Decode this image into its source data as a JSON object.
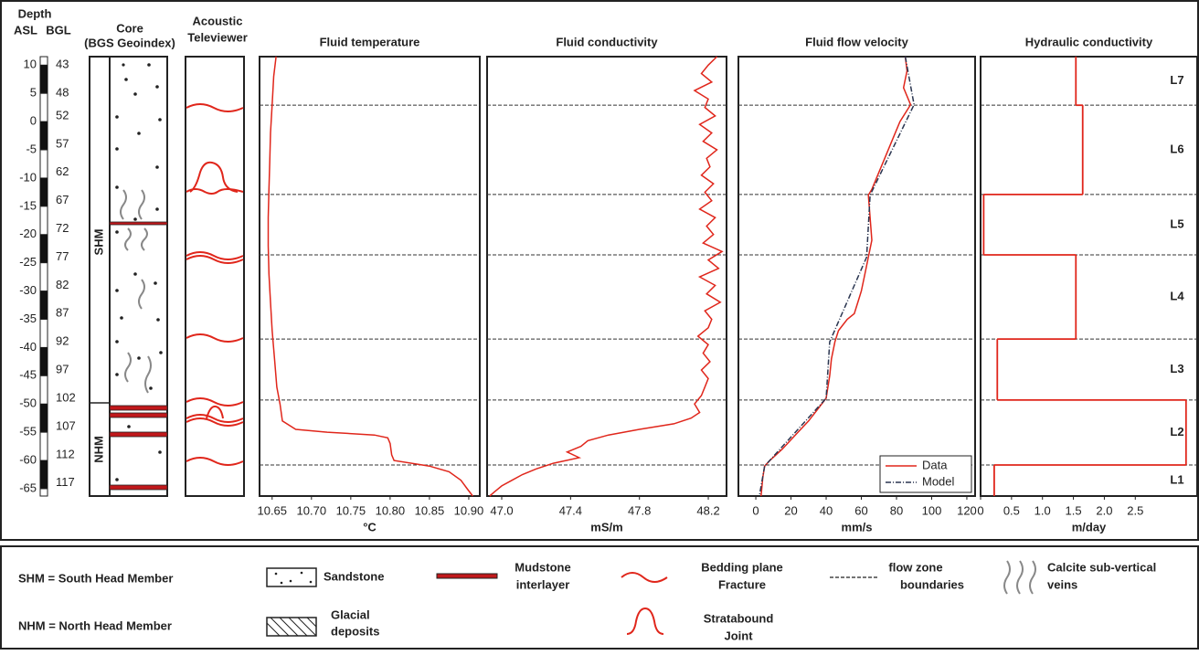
{
  "header": {
    "depth": "Depth",
    "asl": "ASL",
    "bgl": "BGL",
    "core": "Core",
    "core_source": "(BGS Geoindex)",
    "televiewer": [
      "Acoustic",
      "Televiewer"
    ],
    "shm": "SHM",
    "nhm": "NHM"
  },
  "depth_axis": {
    "ylim": [
      41.5,
      119.3
    ],
    "asl_lim": [
      11.5,
      -66.3
    ],
    "asl_ticks": [
      10,
      5,
      0,
      -5,
      -10,
      -15,
      -20,
      -25,
      -30,
      -35,
      -40,
      -45,
      -50,
      -55,
      -60,
      -65
    ],
    "bgl_ticks": [
      43,
      48,
      52,
      57,
      62,
      67,
      72,
      77,
      82,
      87,
      92,
      97,
      102,
      107,
      112,
      117
    ]
  },
  "zone_boundaries": [
    50.1,
    65.9,
    76.6,
    91.5,
    102.3,
    113.8
  ],
  "chart_data": [
    {
      "type": "line",
      "title": "Fluid temperature",
      "xlabel": "°C",
      "xlim": [
        10.634,
        10.914
      ],
      "xticks": [
        10.65,
        {
          "value": 10.7,
          "label": "10.70"
        },
        10.75,
        {
          "value": 10.8,
          "label": "10.80"
        },
        10.85,
        {
          "value": 10.9,
          "label": "10.90"
        }
      ],
      "series": [
        {
          "color": "#e0261b",
          "depth": [
            41.5,
            45,
            50,
            55,
            60,
            65,
            70,
            75,
            80,
            85,
            90,
            95,
            100,
            103,
            106,
            107.5,
            108,
            108.5,
            109,
            110,
            112,
            113,
            114,
            115,
            116.5,
            118,
            119.3
          ],
          "values": [
            10.655,
            10.652,
            10.65,
            10.648,
            10.647,
            10.646,
            10.645,
            10.645,
            10.646,
            10.648,
            10.65,
            10.653,
            10.656,
            10.66,
            10.663,
            10.68,
            10.72,
            10.78,
            10.797,
            10.8,
            10.802,
            10.805,
            10.85,
            10.875,
            10.89,
            10.898,
            10.905
          ]
        }
      ]
    },
    {
      "type": "line",
      "title": "Fluid conductivity",
      "xlabel": "mS/m",
      "xlim": [
        46.915,
        48.306
      ],
      "xticks": [
        {
          "value": 47,
          "label": "47.0"
        },
        47.4,
        47.8,
        48.2
      ],
      "series": [
        {
          "color": "#e0261b",
          "depth": [
            41.5,
            43,
            44.5,
            46,
            47.5,
            49,
            50.5,
            52,
            53.5,
            55,
            56.5,
            58,
            59.5,
            61,
            62.5,
            64,
            65.5,
            67,
            68.5,
            70,
            71.5,
            73,
            74.5,
            76,
            77.5,
            79,
            80.5,
            82,
            83.5,
            85,
            86.5,
            88,
            89.5,
            91,
            92.5,
            94,
            95.5,
            97,
            98.5,
            100,
            101.5,
            103,
            104.5,
            105.5,
            106.5,
            107.5,
            108.5,
            109.5,
            110.5,
            111.5,
            112.5,
            113.5,
            114.5,
            115.5,
            116.5,
            117.5,
            118.5,
            119.3
          ],
          "values": [
            48.25,
            48.2,
            48.16,
            48.22,
            48.12,
            48.2,
            48.18,
            48.24,
            48.15,
            48.22,
            48.17,
            48.25,
            48.19,
            48.21,
            48.16,
            48.23,
            48.18,
            48.22,
            48.15,
            48.24,
            48.19,
            48.23,
            48.17,
            48.28,
            48.2,
            48.26,
            48.15,
            48.24,
            48.19,
            48.27,
            48.18,
            48.22,
            48.2,
            48.14,
            48.2,
            48.17,
            48.21,
            48.16,
            48.2,
            48.18,
            48.16,
            48.12,
            48.15,
            48.1,
            48.0,
            47.8,
            47.62,
            47.5,
            47.46,
            47.38,
            47.45,
            47.3,
            47.2,
            47.12,
            47.06,
            47.0,
            46.96,
            46.93
          ]
        }
      ]
    },
    {
      "type": "line",
      "title": "Fluid flow velocity",
      "xlabel": "mm/s",
      "xlim": [
        -9.9,
        124.7
      ],
      "xticks": [
        0,
        20,
        40,
        60,
        80,
        100,
        120
      ],
      "legend": "lower right",
      "series": [
        {
          "name": "Data",
          "color": "#e0261b",
          "dash": "none",
          "depth": [
            41.5,
            44,
            47,
            50,
            53,
            56,
            59,
            62,
            65,
            66,
            70,
            74,
            77,
            80,
            83,
            85,
            87,
            88,
            90,
            92,
            95,
            98,
            102,
            104,
            106,
            108,
            110,
            111,
            113,
            114,
            116,
            119.3
          ],
          "values": [
            85,
            86,
            84,
            88,
            82,
            78,
            74,
            70,
            66,
            64,
            65,
            66,
            64,
            62,
            60,
            58,
            56,
            52,
            47,
            45,
            43,
            42,
            40,
            35,
            30,
            24,
            18,
            15,
            8,
            5,
            4,
            3
          ]
        },
        {
          "name": "Model",
          "color": "#2a3550",
          "dash": "6 2 1 2",
          "depth": [
            41.5,
            50,
            66,
            77,
            92,
            102,
            114,
            119.3
          ],
          "values": [
            85,
            90,
            65,
            63,
            42,
            40,
            5,
            2
          ]
        }
      ]
    },
    {
      "type": "step",
      "title": "Hydraulic conductivity",
      "xlabel": "m/day",
      "xlim": [
        0,
        3.5
      ],
      "xticks": [
        0,
        0.5,
        {
          "value": 1,
          "label": "1.0"
        },
        1.5,
        {
          "value": 2,
          "label": "2.0"
        },
        2.5
      ],
      "color": "#e0261b",
      "zones": [
        "L7",
        "L6",
        "L5",
        "L4",
        "L3",
        "L2",
        "L1"
      ],
      "values": [
        1.54,
        1.65,
        0.05,
        1.54,
        0.27,
        3.32,
        0.22
      ]
    }
  ],
  "legend": {
    "shm": "SHM = South Head Member",
    "nhm": "NHM = North Head Member",
    "sandstone": "Sandstone",
    "glacial": [
      "Glacial",
      "deposits"
    ],
    "mudstone": [
      "Mudstone",
      "interlayer"
    ],
    "bedding": [
      "Bedding plane",
      "Fracture"
    ],
    "joint": [
      "Stratabound",
      "Joint"
    ],
    "flow_zone": [
      "flow zone",
      "boundaries"
    ],
    "calcite": [
      "Calcite sub-vertical",
      "veins"
    ]
  }
}
